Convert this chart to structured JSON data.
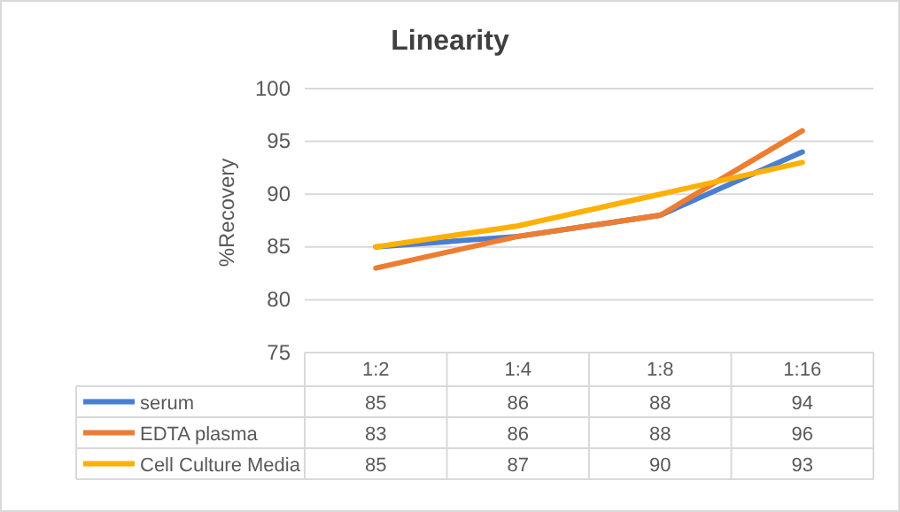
{
  "chart_data": {
    "type": "line",
    "title": "Linearity",
    "ylabel": "%Recovery",
    "categories": [
      "1:2",
      "1:4",
      "1:8",
      "1:16"
    ],
    "series": [
      {
        "name": "serum",
        "color": "#4a7fd0",
        "values": [
          85,
          86,
          88,
          94
        ]
      },
      {
        "name": "EDTA plasma",
        "color": "#ed7d31",
        "values": [
          83,
          86,
          88,
          96
        ]
      },
      {
        "name": "Cell Culture Media",
        "color": "#ffb000",
        "values": [
          85,
          87,
          90,
          93
        ]
      }
    ],
    "ylim": [
      75,
      100
    ],
    "yticks": [
      75,
      80,
      85,
      90,
      95,
      100
    ],
    "grid": "y",
    "legend": "bottom",
    "data_labels": true,
    "marker": "none",
    "line_style": "solid"
  }
}
